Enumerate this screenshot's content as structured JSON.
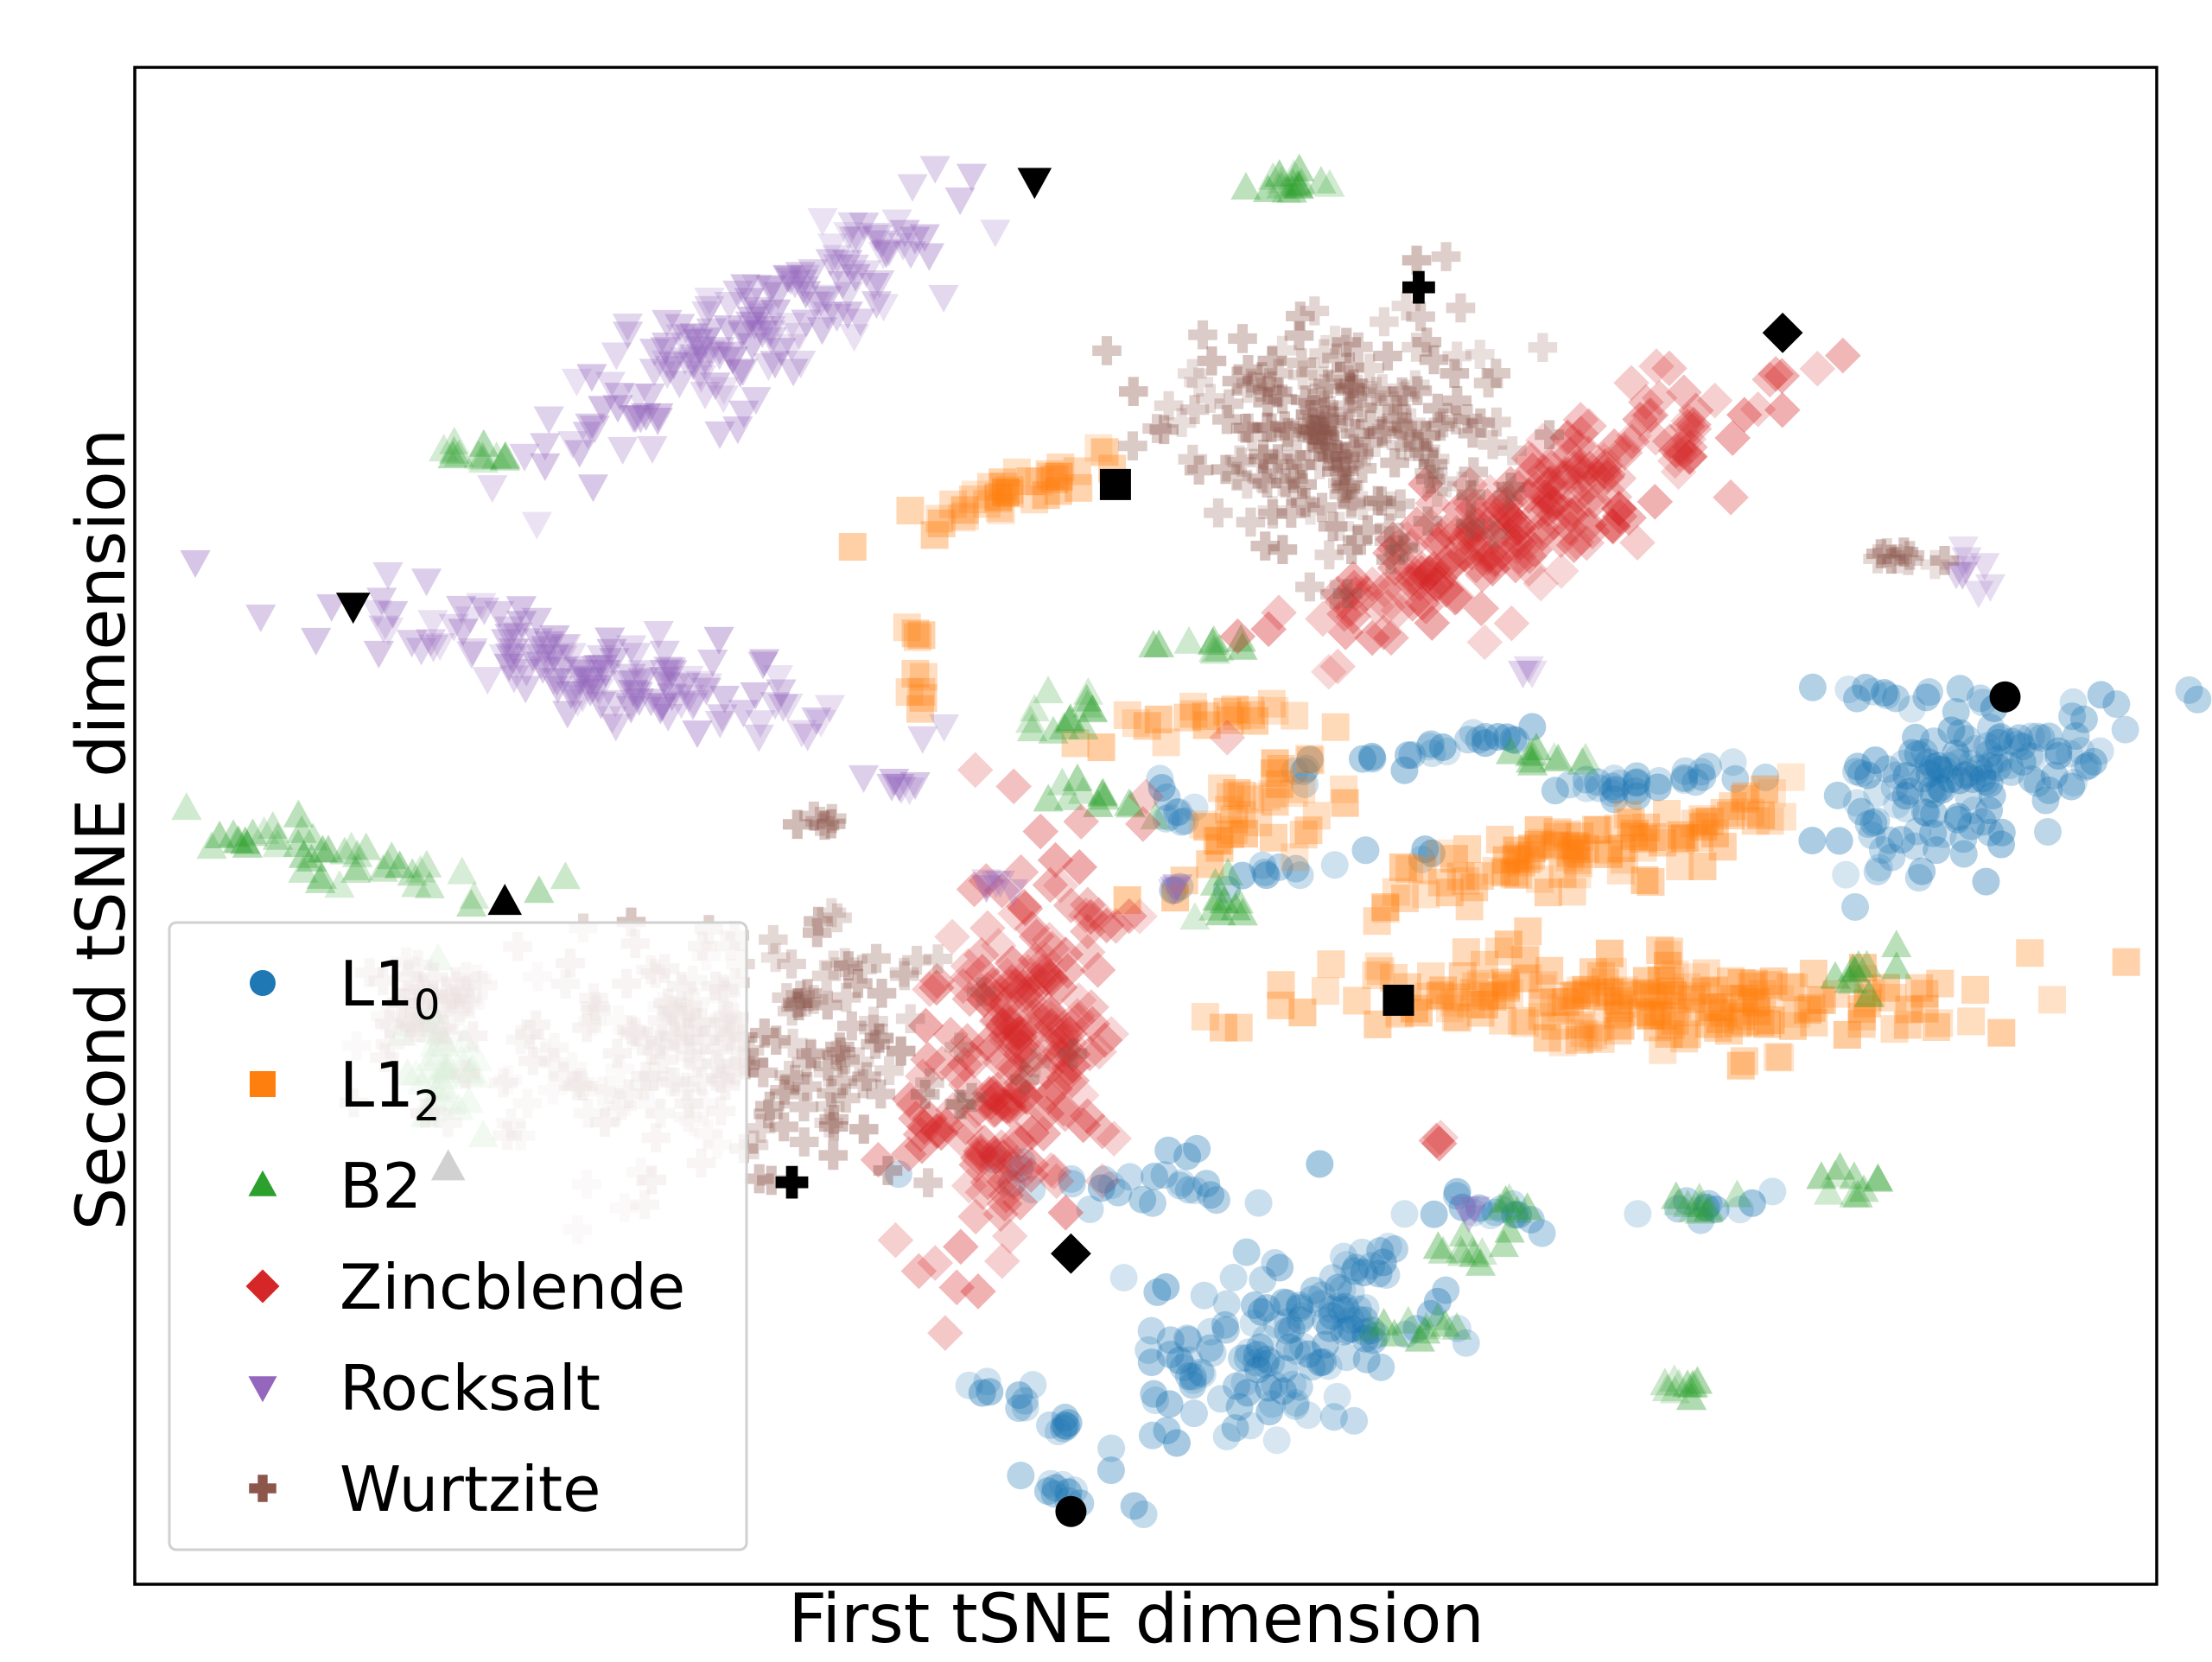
{
  "chart_data": {
    "type": "scatter",
    "title": "",
    "xlabel": "First tSNE dimension",
    "ylabel": "Second tSNE dimension",
    "xlim": [
      0,
      100
    ],
    "ylim": [
      0,
      100
    ],
    "ticks_shown": false,
    "grid": false,
    "legend_placement": "lower-left",
    "legend": [
      {
        "key": "L10",
        "base": "L1",
        "sub": "0",
        "marker": "circle",
        "color": "#1f77b4"
      },
      {
        "key": "L12",
        "base": "L1",
        "sub": "2",
        "marker": "square",
        "color": "#ff7f0e"
      },
      {
        "key": "B2",
        "base": "B2",
        "sub": "",
        "marker": "triangle-up",
        "color": "#2ca02c"
      },
      {
        "key": "Zincblende",
        "base": "Zincblende",
        "sub": "",
        "marker": "diamond",
        "color": "#d62728"
      },
      {
        "key": "Rocksalt",
        "base": "Rocksalt",
        "sub": "",
        "marker": "triangle-down",
        "color": "#9467bd"
      },
      {
        "key": "Wurtzite",
        "base": "Wurtzite",
        "sub": "",
        "marker": "plus",
        "color": "#8c564b"
      }
    ],
    "series": [
      {
        "key": "L10",
        "clusters": [
          [
            91.3,
            53.0,
            4.5,
            11.0,
            -55,
            120
          ],
          [
            75.0,
            53.0,
            6.5,
            1.0,
            10,
            28
          ],
          [
            63.5,
            55.0,
            8.5,
            1.0,
            12,
            26
          ],
          [
            89.0,
            54.0,
            7.5,
            1.0,
            3,
            26
          ],
          [
            88.5,
            58.5,
            6.0,
            0.8,
            0,
            14
          ],
          [
            56.5,
            47.0,
            6.5,
            1.0,
            12,
            16
          ],
          [
            50.8,
            26.5,
            10.0,
            2.0,
            -5,
            30
          ],
          [
            67.5,
            24.5,
            3.5,
            1.0,
            -15,
            14
          ],
          [
            78.5,
            25.0,
            3.0,
            0.8,
            12,
            10
          ],
          [
            57.0,
            16.0,
            10.5,
            5.0,
            32,
            150
          ],
          [
            44.5,
            11.5,
            5.0,
            1.0,
            -32,
            16
          ],
          [
            44.5,
            6.5,
            4.0,
            0.8,
            -18,
            12
          ],
          [
            51.5,
            51.0,
            3.0,
            1.0,
            -60,
            10
          ]
        ],
        "highlights": [
          [
            92.5,
            58.5
          ],
          [
            46.3,
            4.8
          ]
        ]
      },
      {
        "key": "L12",
        "clusters": [
          [
            74.0,
            38.5,
            17.5,
            3.5,
            0,
            200
          ],
          [
            70.0,
            48.0,
            9.5,
            2.5,
            18,
            80
          ],
          [
            79.0,
            50.5,
            2.5,
            5.0,
            -55,
            24
          ],
          [
            55.5,
            51.0,
            7.0,
            3.0,
            40,
            40
          ],
          [
            43.5,
            72.0,
            7.0,
            1.5,
            25,
            40
          ],
          [
            38.5,
            61.0,
            0.7,
            3.0,
            0,
            10
          ],
          [
            52.5,
            57.0,
            6.5,
            1.2,
            12,
            22
          ],
          [
            63.0,
            38.0,
            1.0,
            1.0,
            0,
            4
          ]
        ],
        "highlights": [
          [
            48.5,
            72.5
          ],
          [
            62.5,
            38.5
          ]
        ]
      },
      {
        "key": "B2",
        "clusters": [
          [
            57.3,
            92.5,
            3.0,
            1.0,
            0,
            16
          ],
          [
            16.8,
            74.5,
            2.5,
            0.8,
            0,
            12
          ],
          [
            10.0,
            48.0,
            10.0,
            2.0,
            -18,
            45
          ],
          [
            15.5,
            34.0,
            2.0,
            5.0,
            10,
            40
          ],
          [
            53.5,
            62.0,
            3.0,
            0.8,
            0,
            10
          ],
          [
            46.0,
            57.5,
            2.5,
            1.5,
            20,
            14
          ],
          [
            47.0,
            52.0,
            3.5,
            1.0,
            -15,
            12
          ],
          [
            54.0,
            45.5,
            1.5,
            2.0,
            0,
            10
          ],
          [
            70.0,
            54.5,
            3.0,
            0.8,
            -10,
            10
          ],
          [
            85.5,
            40.5,
            2.0,
            1.5,
            0,
            10
          ],
          [
            85.0,
            26.0,
            2.0,
            1.5,
            30,
            10
          ],
          [
            77.0,
            25.0,
            3.0,
            1.0,
            0,
            10
          ],
          [
            65.5,
            22.0,
            3.0,
            1.0,
            0,
            10
          ],
          [
            68.5,
            24.5,
            1.0,
            1.0,
            0,
            6
          ],
          [
            63.5,
            17.0,
            3.0,
            1.0,
            0,
            10
          ],
          [
            76.5,
            13.0,
            1.5,
            1.5,
            0,
            10
          ]
        ],
        "highlights": [
          [
            18.3,
            45.0
          ],
          [
            15.5,
            27.5
          ]
        ]
      },
      {
        "key": "Zincblende",
        "clusters": [
          [
            68.5,
            70.0,
            15.0,
            4.0,
            35,
            230
          ],
          [
            43.5,
            34.5,
            5.0,
            14.5,
            -8,
            230
          ],
          [
            64.5,
            29.0,
            0.4,
            0.5,
            0,
            3
          ],
          [
            49.0,
            44.0,
            0.8,
            0.8,
            0,
            3
          ]
        ],
        "highlights": [
          [
            81.5,
            82.5
          ],
          [
            46.3,
            21.8
          ]
        ]
      },
      {
        "key": "Rocksalt",
        "clusters": [
          [
            30.5,
            83.0,
            16.5,
            4.0,
            40,
            170
          ],
          [
            22.0,
            60.5,
            14.0,
            3.2,
            -18,
            150
          ],
          [
            38.0,
            52.5,
            2.0,
            1.0,
            0,
            8
          ],
          [
            42.5,
            46.5,
            1.0,
            1.0,
            0,
            5
          ],
          [
            51.5,
            45.5,
            0.8,
            0.8,
            0,
            3
          ],
          [
            90.8,
            67.0,
            1.2,
            1.5,
            0,
            8
          ],
          [
            69.0,
            60.0,
            0.8,
            0.8,
            0,
            3
          ],
          [
            66.0,
            24.5,
            0.6,
            0.6,
            0,
            3
          ]
        ],
        "highlights": [
          [
            44.5,
            92.5
          ],
          [
            10.8,
            64.5
          ]
        ]
      },
      {
        "key": "Wurtzite",
        "clusters": [
          [
            59.5,
            75.5,
            9.5,
            9.0,
            -10,
            230
          ],
          [
            29.0,
            35.0,
            13.0,
            8.5,
            0,
            230
          ],
          [
            87.5,
            67.8,
            2.5,
            0.6,
            -10,
            10
          ],
          [
            33.5,
            50.0,
            1.5,
            0.6,
            20,
            6
          ],
          [
            14.5,
            38.0,
            3.0,
            3.5,
            0,
            40
          ]
        ],
        "highlights": [
          [
            63.5,
            85.5
          ],
          [
            32.5,
            26.5
          ]
        ]
      }
    ]
  }
}
